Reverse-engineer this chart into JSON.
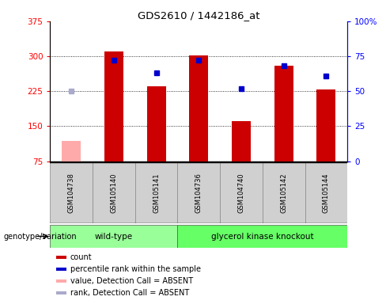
{
  "title": "GDS2610 / 1442186_at",
  "samples": [
    "GSM104738",
    "GSM105140",
    "GSM105141",
    "GSM104736",
    "GSM104740",
    "GSM105142",
    "GSM105144"
  ],
  "count_values": [
    null,
    310,
    235,
    302,
    160,
    280,
    228
  ],
  "count_absent": [
    118,
    null,
    null,
    null,
    null,
    null,
    null
  ],
  "rank_values": [
    null,
    72,
    63,
    72,
    52,
    68,
    61
  ],
  "rank_absent": [
    50,
    null,
    null,
    null,
    null,
    null,
    null
  ],
  "wild_type_indices": [
    0,
    1,
    2
  ],
  "knockout_indices": [
    3,
    4,
    5,
    6
  ],
  "ylim_left": [
    75,
    375
  ],
  "ylim_right": [
    0,
    100
  ],
  "yticks_left": [
    75,
    150,
    225,
    300,
    375
  ],
  "yticks_right": [
    0,
    25,
    50,
    75,
    100
  ],
  "bar_color_present": "#cc0000",
  "bar_color_absent": "#ffaaaa",
  "dot_color_present": "#0000cc",
  "dot_color_absent": "#aaaacc",
  "wt_color": "#99ff99",
  "ko_color": "#66ff66",
  "bar_width": 0.45,
  "legend_labels": [
    "count",
    "percentile rank within the sample",
    "value, Detection Call = ABSENT",
    "rank, Detection Call = ABSENT"
  ]
}
